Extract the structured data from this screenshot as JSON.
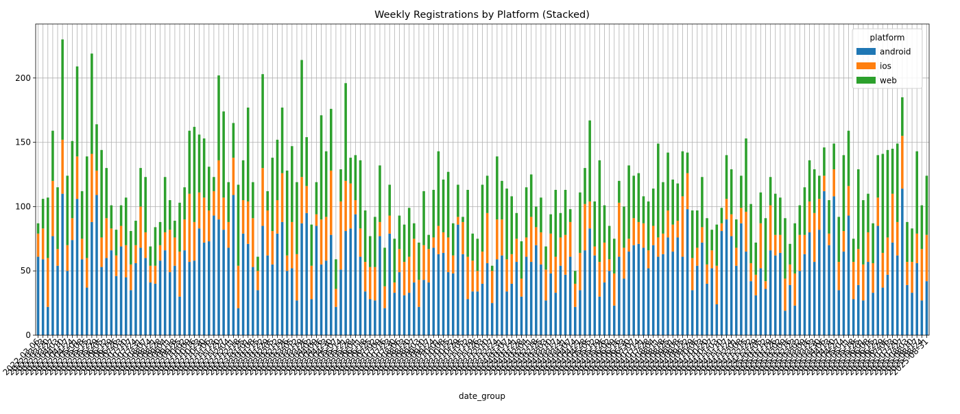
{
  "chart_data": {
    "type": "stacked_bar",
    "title": "Weekly Registrations by Platform (Stacked)",
    "xlabel": "date_group",
    "legend_title": "platform",
    "legend": "upper right",
    "grid": true,
    "categories": [
      "2022-03-06",
      "2022-03-13",
      "2022-03-20",
      "2022-03-27",
      "2022-04-03",
      "2022-04-10",
      "2022-04-17",
      "2022-04-24",
      "2022-05-01",
      "2022-05-08",
      "2022-05-15",
      "2022-05-22",
      "2022-05-29",
      "2022-06-05",
      "2022-06-12",
      "2022-06-19",
      "2022-06-26",
      "2022-07-03",
      "2022-07-10",
      "2022-07-17",
      "2022-07-24",
      "2022-07-31",
      "2022-08-07",
      "2022-08-14",
      "2022-08-21",
      "2022-08-28",
      "2022-09-04",
      "2022-09-11",
      "2022-09-18",
      "2022-09-25",
      "2022-10-02",
      "2022-10-09",
      "2022-10-16",
      "2022-10-23",
      "2022-10-30",
      "2022-11-06",
      "2022-11-13",
      "2022-11-20",
      "2022-11-27",
      "2022-12-04",
      "2022-12-11",
      "2022-12-18",
      "2022-12-25",
      "2023-01-01",
      "2023-01-08",
      "2023-01-15",
      "2023-01-22",
      "2023-01-29",
      "2023-02-05",
      "2023-02-12",
      "2023-02-19",
      "2023-02-26",
      "2023-03-05",
      "2023-03-12",
      "2023-03-19",
      "2023-03-26",
      "2023-04-02",
      "2023-04-09",
      "2023-04-16",
      "2023-04-23",
      "2023-04-30",
      "2023-05-07",
      "2023-05-14",
      "2023-05-21",
      "2023-05-28",
      "2023-06-04",
      "2023-06-11",
      "2023-06-18",
      "2023-06-25",
      "2023-07-02",
      "2023-07-09",
      "2023-07-16",
      "2023-07-23",
      "2023-07-30",
      "2023-08-06",
      "2023-08-13",
      "2023-08-20",
      "2023-08-27",
      "2023-09-03",
      "2023-09-10",
      "2023-09-17",
      "2023-09-24",
      "2023-10-01",
      "2023-10-08",
      "2023-10-15",
      "2023-10-22",
      "2023-10-29",
      "2023-11-05",
      "2023-11-12",
      "2023-11-19",
      "2023-11-26",
      "2023-12-03",
      "2023-12-10",
      "2023-12-17",
      "2023-12-24",
      "2023-12-31",
      "2024-01-07",
      "2024-01-14",
      "2024-01-21",
      "2024-01-28",
      "2024-02-04",
      "2024-02-11",
      "2024-02-18",
      "2024-02-25",
      "2024-03-03",
      "2024-03-10",
      "2024-03-17",
      "2024-03-24",
      "2024-03-31",
      "2024-04-07",
      "2024-04-14",
      "2024-04-21",
      "2024-04-28",
      "2024-05-05",
      "2024-05-12",
      "2024-05-19",
      "2024-05-26",
      "2024-06-02",
      "2024-06-09",
      "2024-06-16",
      "2024-06-23",
      "2024-06-30",
      "2024-07-07",
      "2024-07-14",
      "2024-07-21",
      "2024-07-28",
      "2024-08-04",
      "2024-08-11",
      "2024-08-18",
      "2024-08-25",
      "2024-09-01",
      "2024-09-08",
      "2024-09-15",
      "2024-09-22",
      "2024-09-29",
      "2024-10-06",
      "2024-10-13",
      "2024-10-20",
      "2024-10-27",
      "2024-11-03",
      "2024-11-10",
      "2024-11-17",
      "2024-11-24",
      "2024-12-01",
      "2024-12-08",
      "2024-12-15",
      "2024-12-22",
      "2024-12-29",
      "2025-01-05",
      "2025-01-12",
      "2025-01-19",
      "2025-01-26",
      "2025-02-02",
      "2025-02-09",
      "2025-02-16",
      "2025-02-23",
      "2025-03-02",
      "2025-03-09",
      "2025-03-16",
      "2025-03-23",
      "2025-03-30",
      "2025-04-06",
      "2025-04-13",
      "2025-04-20",
      "2025-04-27",
      "2025-05-04",
      "2025-05-11",
      "2025-05-18",
      "2025-05-25",
      "2025-06-01",
      "2025-06-08",
      "2025-06-15",
      "2025-06-22",
      "2025-06-29",
      "2025-07-06",
      "2025-07-13",
      "2025-07-20",
      "2025-07-27",
      "2025-08-03",
      "2025-08-10",
      "2025-08-17",
      "2025-08-24",
      "2025-08-31"
    ],
    "series": [
      {
        "name": "android",
        "color": "#1f77b4",
        "values": [
          61,
          59,
          22,
          77,
          54,
          110,
          50,
          74,
          106,
          59,
          37,
          88,
          109,
          53,
          60,
          66,
          46,
          69,
          45,
          35,
          56,
          68,
          60,
          41,
          40,
          58,
          66,
          49,
          54,
          30,
          66,
          57,
          58,
          83,
          72,
          73,
          93,
          90,
          82,
          68,
          109,
          21,
          79,
          71,
          53,
          35,
          85,
          62,
          55,
          79,
          88,
          50,
          52,
          27,
          87,
          95,
          28,
          85,
          55,
          58,
          78,
          22,
          51,
          81,
          83,
          94,
          61,
          34,
          28,
          27,
          77,
          21,
          79,
          33,
          49,
          31,
          33,
          41,
          22,
          43,
          41,
          68,
          63,
          64,
          49,
          48,
          86,
          63,
          28,
          34,
          34,
          40,
          56,
          25,
          59,
          62,
          34,
          40,
          57,
          30,
          61,
          57,
          70,
          55,
          27,
          48,
          33,
          54,
          47,
          61,
          22,
          35,
          66,
          83,
          62,
          30,
          41,
          50,
          23,
          61,
          44,
          65,
          70,
          71,
          68,
          52,
          70,
          61,
          63,
          76,
          65,
          76,
          61,
          98,
          35,
          54,
          72,
          40,
          52,
          24,
          81,
          90,
          77,
          54,
          87,
          65,
          42,
          31,
          52,
          36,
          66,
          62,
          64,
          19,
          39,
          23,
          50,
          63,
          80,
          57,
          82,
          112,
          70,
          108,
          35,
          65,
          93,
          28,
          39,
          27,
          57,
          33,
          85,
          37,
          47,
          72,
          62,
          114,
          39,
          33,
          56,
          27,
          42
        ]
      },
      {
        "name": "ios",
        "color": "#ff7f0e",
        "values": [
          18,
          24,
          38,
          43,
          13,
          42,
          20,
          17,
          33,
          16,
          23,
          53,
          19,
          23,
          31,
          17,
          16,
          16,
          25,
          20,
          14,
          32,
          20,
          13,
          14,
          12,
          14,
          33,
          22,
          35,
          24,
          53,
          30,
          28,
          35,
          24,
          19,
          46,
          25,
          20,
          29,
          33,
          26,
          33,
          38,
          15,
          45,
          35,
          26,
          26,
          38,
          12,
          36,
          36,
          36,
          21,
          26,
          9,
          35,
          34,
          50,
          14,
          53,
          39,
          35,
          11,
          22,
          23,
          25,
          26,
          11,
          17,
          14,
          8,
          18,
          26,
          28,
          34,
          21,
          27,
          26,
          8,
          22,
          16,
          27,
          14,
          6,
          25,
          33,
          24,
          16,
          25,
          39,
          25,
          31,
          28,
          25,
          23,
          18,
          14,
          15,
          35,
          14,
          25,
          24,
          31,
          28,
          22,
          31,
          27,
          18,
          29,
          36,
          21,
          7,
          27,
          31,
          9,
          25,
          42,
          24,
          10,
          21,
          17,
          19,
          14,
          15,
          15,
          16,
          21,
          21,
          13,
          47,
          28,
          25,
          14,
          12,
          15,
          14,
          30,
          6,
          16,
          17,
          14,
          12,
          31,
          14,
          16,
          35,
          6,
          35,
          16,
          14,
          25,
          16,
          25,
          28,
          15,
          24,
          38,
          24,
          12,
          9,
          21,
          22,
          16,
          23,
          29,
          28,
          28,
          23,
          23,
          22,
          27,
          29,
          38,
          26,
          41,
          18,
          24,
          23,
          40,
          36
        ]
      },
      {
        "name": "web",
        "color": "#2ca02c",
        "values": [
          8,
          23,
          47,
          39,
          48,
          78,
          54,
          60,
          70,
          37,
          79,
          78,
          36,
          68,
          39,
          18,
          20,
          16,
          37,
          26,
          19,
          30,
          43,
          15,
          30,
          18,
          43,
          23,
          13,
          38,
          25,
          49,
          74,
          45,
          46,
          34,
          11,
          66,
          67,
          31,
          27,
          63,
          31,
          73,
          28,
          11,
          73,
          15,
          57,
          47,
          51,
          66,
          59,
          56,
          91,
          38,
          32,
          25,
          81,
          51,
          48,
          23,
          25,
          76,
          20,
          35,
          53,
          40,
          24,
          39,
          44,
          30,
          24,
          34,
          26,
          29,
          38,
          12,
          29,
          42,
          11,
          37,
          58,
          41,
          51,
          25,
          25,
          4,
          52,
          21,
          25,
          52,
          29,
          4,
          49,
          30,
          55,
          45,
          20,
          29,
          39,
          33,
          16,
          27,
          18,
          15,
          52,
          19,
          35,
          10,
          10,
          47,
          28,
          63,
          35,
          79,
          29,
          26,
          27,
          17,
          32,
          57,
          33,
          38,
          21,
          38,
          29,
          73,
          40,
          45,
          35,
          29,
          35,
          16,
          37,
          29,
          39,
          36,
          16,
          32,
          12,
          34,
          35,
          22,
          25,
          57,
          46,
          25,
          24,
          49,
          22,
          32,
          29,
          47,
          16,
          39,
          23,
          37,
          32,
          34,
          18,
          22,
          26,
          20,
          35,
          59,
          43,
          18,
          62,
          50,
          30,
          31,
          33,
          77,
          68,
          35,
          61,
          30,
          31,
          26,
          64,
          34,
          46
        ]
      }
    ],
    "ylim": [
      0,
      242
    ],
    "yticks": [
      0,
      50,
      100,
      150,
      200
    ]
  }
}
